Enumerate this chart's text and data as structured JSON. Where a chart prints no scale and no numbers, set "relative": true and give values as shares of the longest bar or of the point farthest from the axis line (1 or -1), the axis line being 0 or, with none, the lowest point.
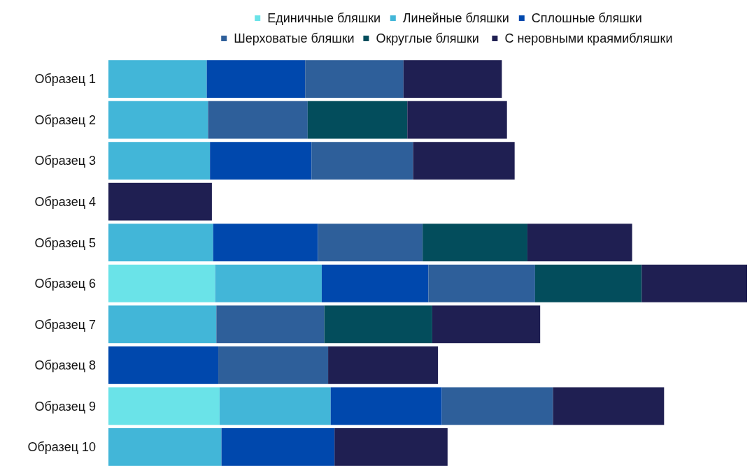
{
  "chart_data": {
    "type": "bar",
    "orientation": "horizontal",
    "stacked": true,
    "relative": true,
    "legend": "top",
    "marker": "square",
    "categories": [
      "Образец 1",
      "Образец 2",
      "Образец 3",
      "Образец 4",
      "Образец 5",
      "Образец 6",
      "Образец 7",
      "Образец 8",
      "Образец 9",
      "Образец 10"
    ],
    "series": [
      {
        "name": "Единичные бляшки",
        "color": "#6ae3e8",
        "values": [
          null,
          null,
          null,
          null,
          null,
          0.167,
          null,
          null,
          0.174,
          null
        ]
      },
      {
        "name": "Линейные бляшки",
        "color": "#42b6d8",
        "values": [
          0.154,
          0.156,
          0.159,
          null,
          0.164,
          0.167,
          0.169,
          null,
          0.174,
          0.177
        ]
      },
      {
        "name": "Сплошные бляшки",
        "color": "#0048ad",
        "values": [
          0.154,
          null,
          0.159,
          null,
          0.164,
          0.167,
          null,
          0.172,
          0.174,
          0.177
        ]
      },
      {
        "name": "Шерховатые бляшки",
        "color": "#2e5f9a",
        "values": [
          0.154,
          0.156,
          0.159,
          null,
          0.164,
          0.167,
          0.169,
          0.172,
          0.174,
          null
        ]
      },
      {
        "name": "Округлые бляшки",
        "color": "#034d5c",
        "values": [
          null,
          0.156,
          null,
          null,
          0.164,
          0.167,
          0.169,
          null,
          null,
          null
        ]
      },
      {
        "name": "С неровными краямибляшки",
        "color": "#1f1f52",
        "values": [
          0.154,
          0.156,
          0.159,
          0.162,
          0.164,
          0.165,
          0.169,
          0.172,
          0.174,
          0.177
        ]
      }
    ]
  }
}
